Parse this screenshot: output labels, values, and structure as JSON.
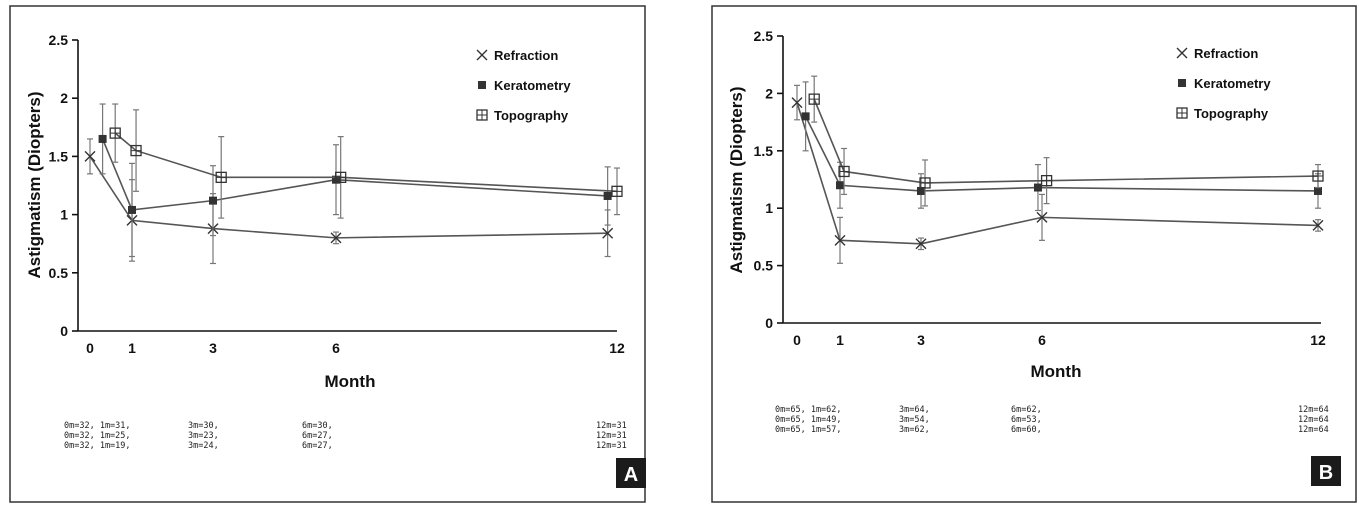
{
  "chart_data": [
    {
      "panel": "A",
      "type": "line",
      "xlabel": "Month",
      "ylabel": "Astigmatism (Diopters)",
      "xlim": [
        0,
        12
      ],
      "ylim": [
        0,
        2.5
      ],
      "x_ticks": [
        0,
        1,
        3,
        6,
        12
      ],
      "y_ticks": [
        "0",
        "0.5",
        "1",
        "1.5",
        "2",
        "2.5"
      ],
      "legend_position": "top-right",
      "series": [
        {
          "name": "Refraction",
          "marker": "x",
          "x": [
            0,
            1,
            3,
            6,
            11.8
          ],
          "y": [
            1.5,
            0.95,
            0.88,
            0.8,
            0.84
          ],
          "err": [
            0.15,
            0.35,
            0.3,
            0.05,
            0.2
          ]
        },
        {
          "name": "Keratometry",
          "marker": "square",
          "x": [
            0.3,
            1,
            3,
            6,
            11.8
          ],
          "y": [
            1.65,
            1.04,
            1.12,
            1.3,
            1.16
          ],
          "err": [
            0.3,
            0.4,
            0.3,
            0.3,
            0.25
          ]
        },
        {
          "name": "Topography",
          "marker": "box",
          "x": [
            0.6,
            1.1,
            3.2,
            6.1,
            12
          ],
          "y": [
            1.7,
            1.55,
            1.32,
            1.32,
            1.2
          ],
          "err": [
            0.25,
            0.35,
            0.35,
            0.35,
            0.2
          ]
        }
      ],
      "n_rows": [
        [
          "0m=32, 1m=31,",
          "3m=30,",
          "6m=30,",
          "12m=31"
        ],
        [
          "0m=32, 1m=25,",
          "3m=23,",
          "6m=27,",
          "12m=31"
        ],
        [
          "0m=32, 1m=19,",
          "3m=24,",
          "6m=27,",
          "12m=31"
        ]
      ],
      "panel_label": "A"
    },
    {
      "panel": "B",
      "type": "line",
      "xlabel": "Month",
      "ylabel": "Astigmatism (Diopters)",
      "xlim": [
        0,
        12
      ],
      "ylim": [
        0,
        2.5
      ],
      "x_ticks": [
        0,
        1,
        3,
        6,
        12
      ],
      "x_tick_labels": [
        "0",
        "1",
        "3",
        "6",
        "12"
      ],
      "y_ticks": [
        "0",
        "0.5",
        "1",
        "1.5",
        "2",
        "2.5"
      ],
      "legend_position": "top-right",
      "series": [
        {
          "name": "Refraction",
          "marker": "x",
          "x": [
            0,
            1,
            3,
            6,
            12
          ],
          "y": [
            1.92,
            0.72,
            0.69,
            0.92,
            0.85
          ],
          "err": [
            0.15,
            0.2,
            0.05,
            0.2,
            0.05
          ]
        },
        {
          "name": "Keratometry",
          "marker": "square",
          "x": [
            0.2,
            1,
            3,
            5.9,
            12
          ],
          "y": [
            1.8,
            1.2,
            1.15,
            1.18,
            1.15
          ],
          "err": [
            0.3,
            0.2,
            0.15,
            0.2,
            0.15
          ]
        },
        {
          "name": "Topography",
          "marker": "box",
          "x": [
            0.4,
            1.1,
            3.1,
            6.1,
            12.2
          ],
          "y": [
            1.95,
            1.32,
            1.22,
            1.24,
            1.28
          ],
          "err": [
            0.2,
            0.2,
            0.2,
            0.2,
            0.1
          ]
        }
      ],
      "n_rows": [
        [
          "0m=65, 1m=62,",
          "3m=64,",
          "6m=62,",
          "12m=64"
        ],
        [
          "0m=65, 1m=49,",
          "3m=54,",
          "6m=53,",
          "12m=64"
        ],
        [
          "0m=65, 1m=57,",
          "3m=62,",
          "6m=60,",
          "12m=64"
        ]
      ],
      "panel_label": "B"
    }
  ]
}
